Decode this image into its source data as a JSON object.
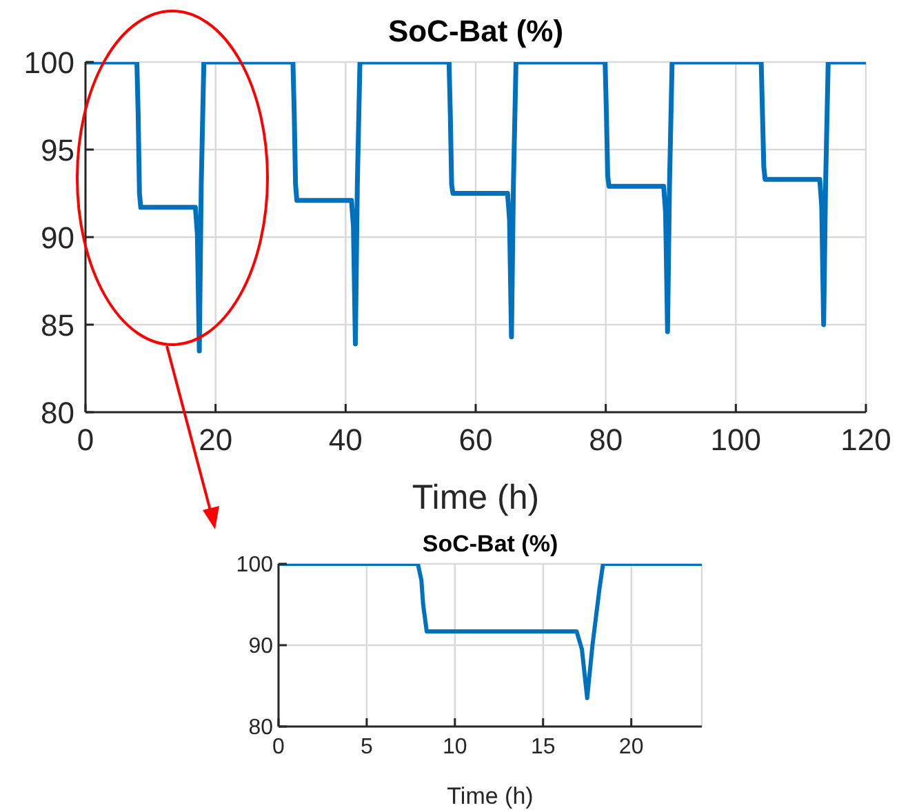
{
  "chart_data": [
    {
      "type": "line",
      "title": "SoC-Bat (%)",
      "xlabel": "Time (h)",
      "xlim": [
        0,
        120
      ],
      "xticks": [
        0,
        20,
        40,
        60,
        80,
        100,
        120
      ],
      "ylim": [
        80,
        100
      ],
      "yticks": [
        80,
        85,
        90,
        95,
        100
      ],
      "grid": true,
      "marker": "none",
      "line_style": "solid",
      "series": [
        {
          "color": "#0072bd",
          "x": [
            0,
            7.9,
            8.1,
            8.3,
            8.5,
            16.9,
            17.2,
            17.5,
            17.8,
            18.2,
            31.9,
            32.1,
            32.3,
            32.5,
            40.9,
            41.2,
            41.5,
            41.8,
            42.2,
            55.9,
            56.1,
            56.3,
            56.5,
            64.9,
            65.2,
            65.5,
            65.8,
            66.2,
            79.9,
            80.1,
            80.3,
            80.5,
            88.9,
            89.2,
            89.5,
            89.8,
            90.2,
            103.9,
            104.1,
            104.3,
            104.5,
            112.9,
            113.2,
            113.5,
            113.8,
            114.2,
            120
          ],
          "values": [
            100,
            100,
            97,
            92.5,
            91.7,
            91.7,
            90.2,
            83.5,
            93,
            100,
            100,
            97,
            93,
            92.1,
            92.1,
            90.6,
            83.9,
            93,
            100,
            100,
            97,
            93,
            92.5,
            92.5,
            91,
            84.3,
            93,
            100,
            100,
            97,
            93.5,
            92.9,
            92.9,
            91.4,
            84.6,
            93,
            100,
            100,
            97,
            94,
            93.3,
            93.3,
            91.8,
            85,
            93,
            100,
            100
          ]
        }
      ]
    },
    {
      "type": "line",
      "title": "SoC-Bat (%)",
      "xlabel": "Time (h)",
      "xlim": [
        0,
        24
      ],
      "xticks": [
        0,
        5,
        10,
        15,
        20
      ],
      "ylim": [
        80,
        100
      ],
      "yticks": [
        80,
        90,
        100
      ],
      "grid": true,
      "marker": "none",
      "line_style": "solid",
      "series": [
        {
          "color": "#0072bd",
          "x": [
            0,
            7.9,
            8.1,
            8.2,
            8.4,
            16.9,
            17.2,
            17.5,
            17.8,
            18.2,
            18.4,
            24
          ],
          "values": [
            100,
            100,
            98,
            95,
            91.7,
            91.7,
            89.5,
            83.5,
            90,
            97,
            100,
            100
          ]
        }
      ]
    }
  ]
}
